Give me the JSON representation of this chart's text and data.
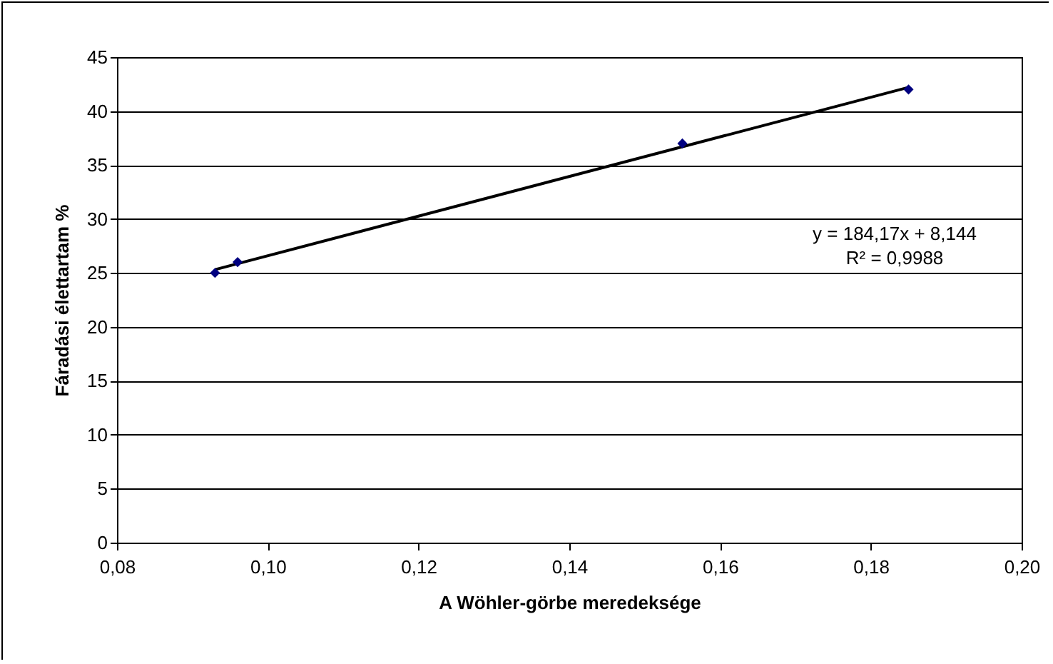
{
  "chart_data": {
    "type": "scatter",
    "xlabel": "A Wöhler-görbe meredeksége",
    "ylabel": "Fáradási élettartam %",
    "xlim": [
      0.08,
      0.2
    ],
    "xticks": [
      {
        "value": 0.08,
        "label": "0,08"
      },
      {
        "value": 0.1,
        "label": "0,10"
      },
      {
        "value": 0.12,
        "label": "0,12"
      },
      {
        "value": 0.14,
        "label": "0,14"
      },
      {
        "value": 0.16,
        "label": "0,16"
      },
      {
        "value": 0.18,
        "label": "0,18"
      },
      {
        "value": 0.2,
        "label": "0,20"
      }
    ],
    "ylim": [
      0,
      45
    ],
    "yticks": [
      0,
      5,
      10,
      15,
      20,
      25,
      30,
      35,
      40,
      45
    ],
    "grid": "y",
    "series": [
      {
        "color": "#000080",
        "marker": "diamond",
        "x": [
          0.093,
          0.096,
          0.155,
          0.185
        ],
        "values": [
          25,
          26,
          37,
          42
        ]
      },
      {
        "type": "line",
        "color": "#000000",
        "marker": "none",
        "x": [
          0.093,
          0.185
        ],
        "values": [
          25.3,
          42.2
        ],
        "line_style": "solid"
      }
    ],
    "annotations": [
      "y = 184,17x + 8,144",
      "R² = 0,9988"
    ]
  }
}
